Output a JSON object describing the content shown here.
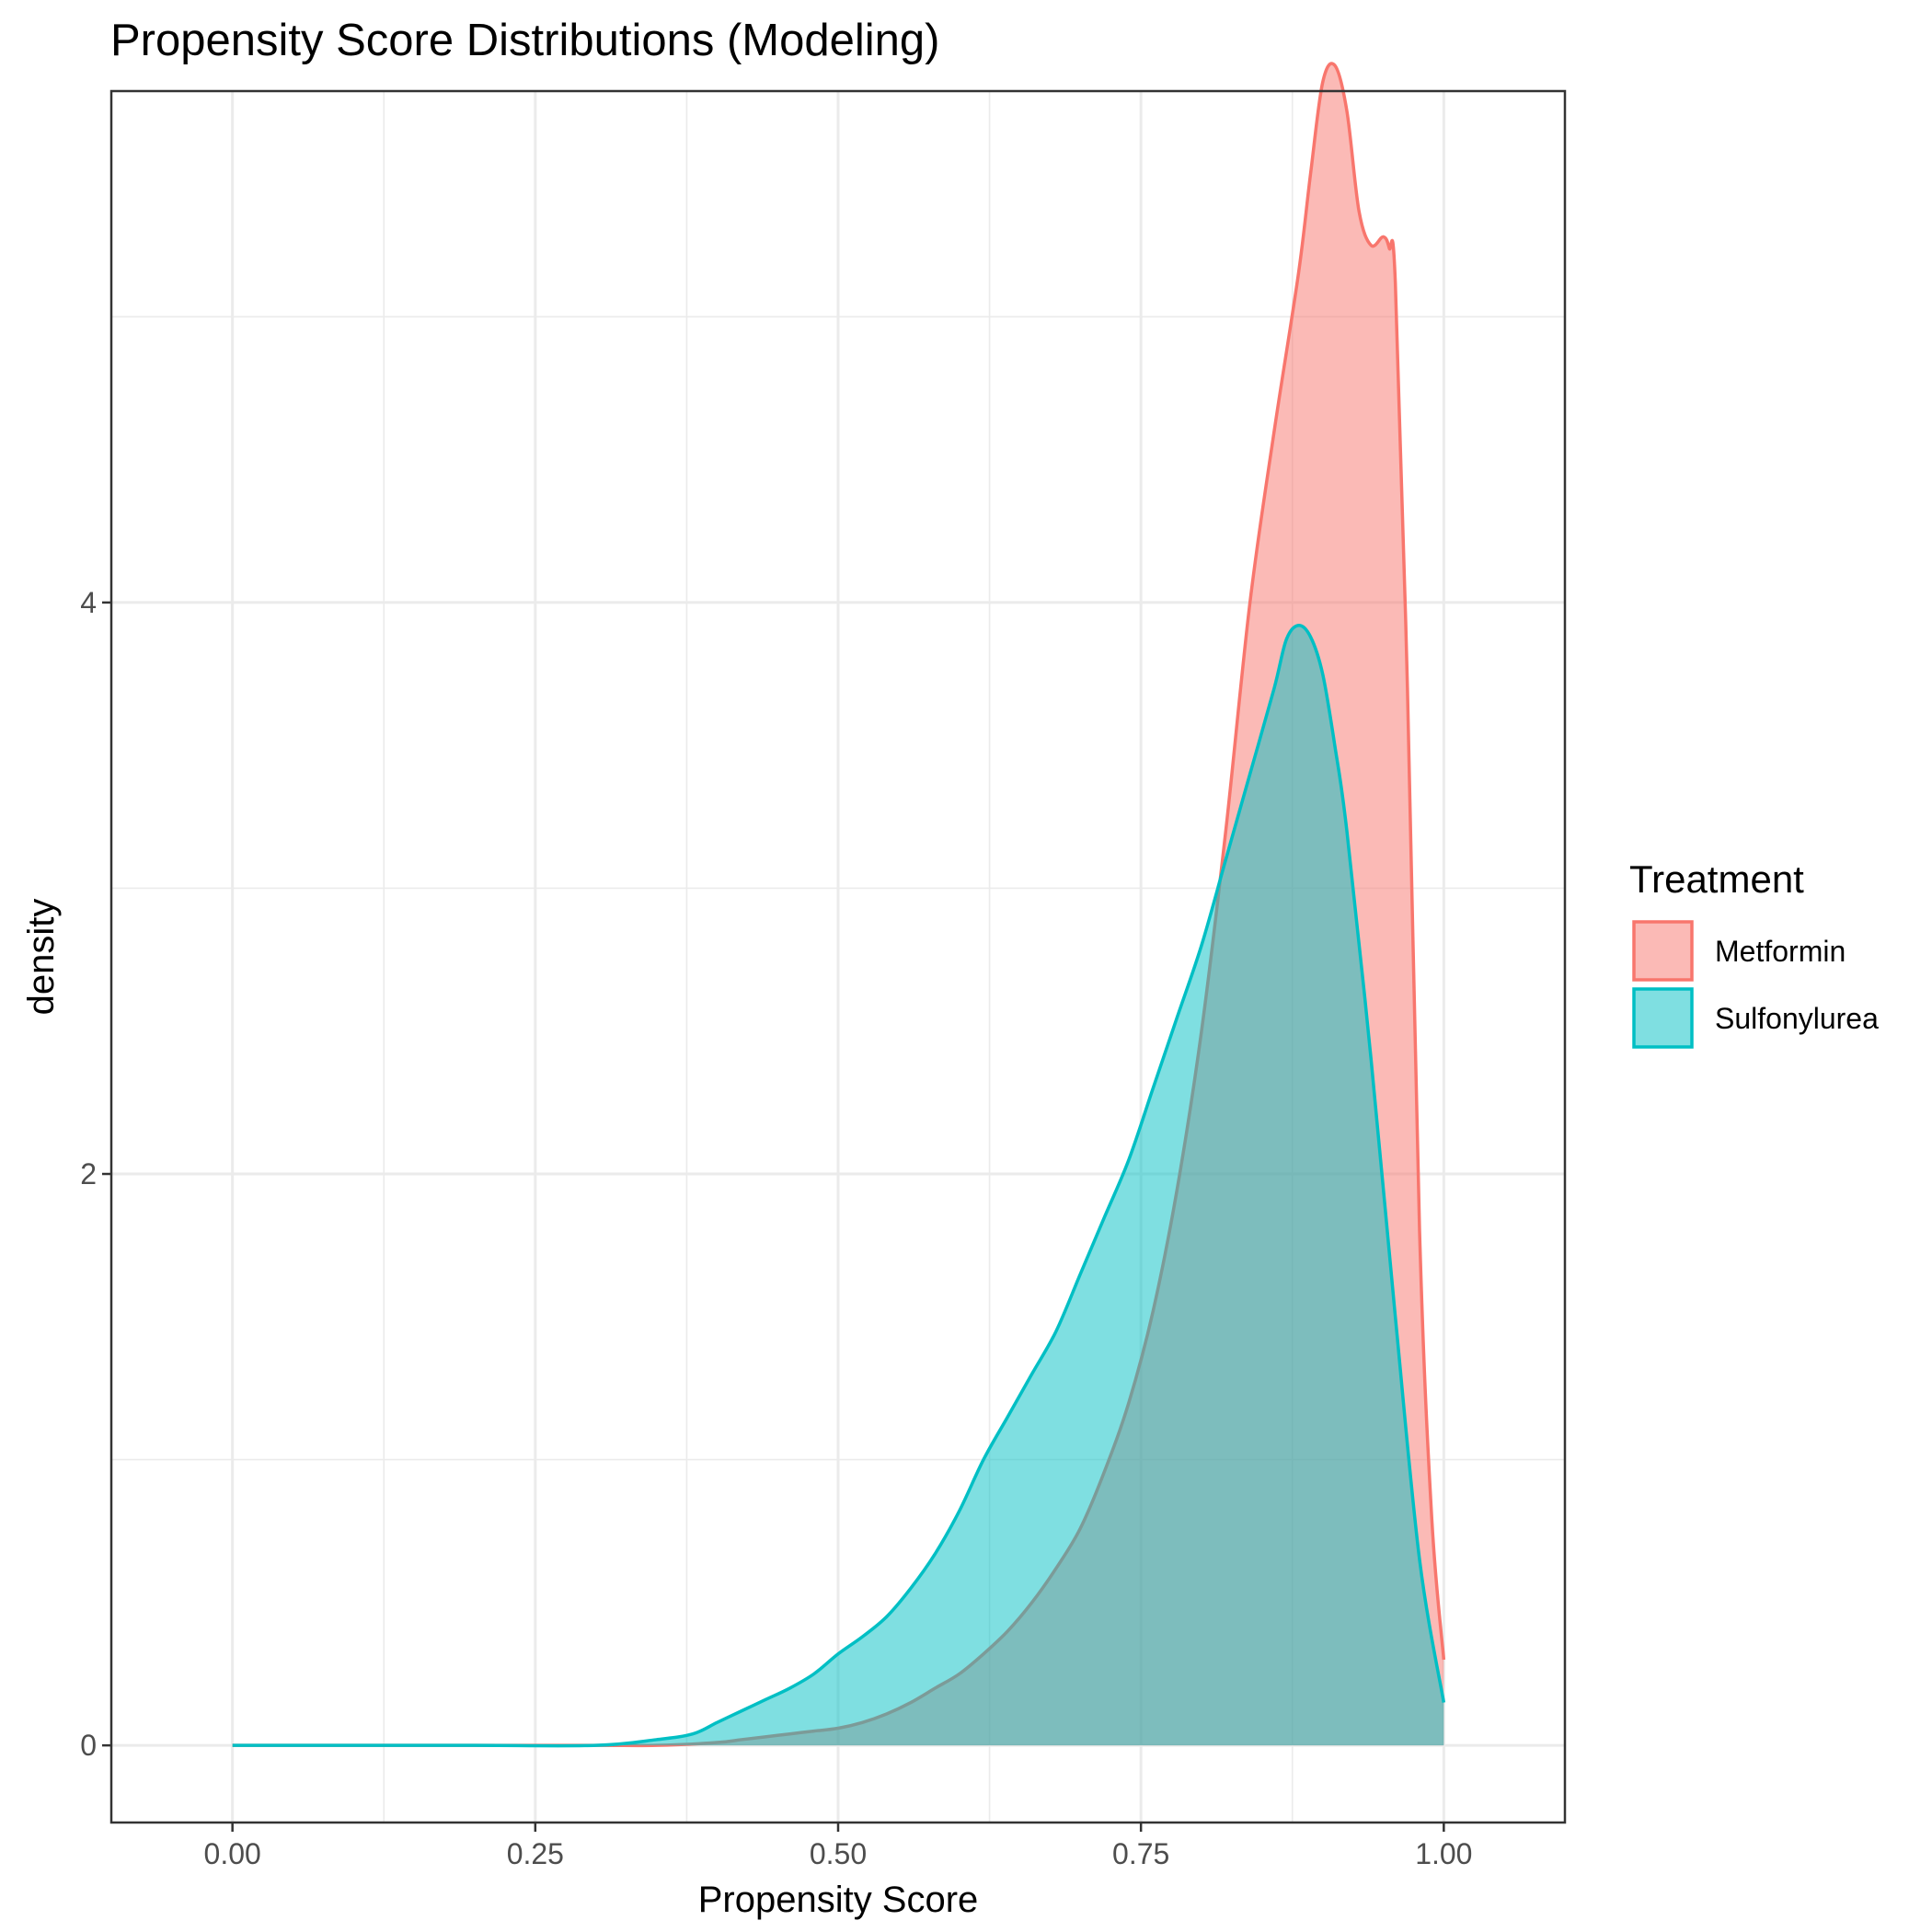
{
  "chart_data": {
    "type": "area",
    "title": "Propensity Score Distributions (Modeling)",
    "xlabel": "Propensity Score",
    "ylabel": "density",
    "xlim": [
      -0.1,
      1.1
    ],
    "ylim": [
      -0.27,
      5.79
    ],
    "x_ticks": [
      0.0,
      0.25,
      0.5,
      0.75,
      1.0
    ],
    "x_tick_labels": [
      "0.00",
      "0.25",
      "0.50",
      "0.75",
      "1.00"
    ],
    "y_ticks": [
      0,
      2,
      4
    ],
    "y_tick_labels": [
      "0",
      "2",
      "4"
    ],
    "grid": true,
    "legend": {
      "title": "Treatment",
      "position": "right"
    },
    "series": [
      {
        "name": "Metformin",
        "color": "#F8766D",
        "fill_opacity": 0.5,
        "x": [
          0.0,
          0.1,
          0.2,
          0.3,
          0.35,
          0.4,
          0.42,
          0.44,
          0.46,
          0.48,
          0.5,
          0.52,
          0.54,
          0.56,
          0.58,
          0.6,
          0.62,
          0.64,
          0.66,
          0.68,
          0.7,
          0.72,
          0.74,
          0.76,
          0.78,
          0.8,
          0.82,
          0.84,
          0.86,
          0.88,
          0.89,
          0.9,
          0.91,
          0.92,
          0.93,
          0.94,
          0.95,
          0.955,
          0.96,
          0.97,
          0.98,
          0.99,
          1.0
        ],
        "y": [
          0.0,
          0.0,
          0.0,
          0.0,
          0.0,
          0.01,
          0.02,
          0.03,
          0.04,
          0.05,
          0.06,
          0.08,
          0.11,
          0.15,
          0.2,
          0.25,
          0.32,
          0.4,
          0.5,
          0.62,
          0.76,
          0.96,
          1.2,
          1.52,
          1.95,
          2.5,
          3.2,
          4.0,
          4.6,
          5.15,
          5.5,
          5.82,
          5.88,
          5.72,
          5.37,
          5.25,
          5.28,
          5.24,
          5.12,
          3.7,
          1.8,
          0.8,
          0.3
        ]
      },
      {
        "name": "Sulfonylurea",
        "color": "#00BFC4",
        "fill_opacity": 0.5,
        "x": [
          0.0,
          0.1,
          0.2,
          0.3,
          0.35,
          0.38,
          0.4,
          0.42,
          0.44,
          0.46,
          0.48,
          0.5,
          0.52,
          0.54,
          0.56,
          0.58,
          0.6,
          0.62,
          0.64,
          0.66,
          0.68,
          0.7,
          0.72,
          0.74,
          0.76,
          0.78,
          0.8,
          0.82,
          0.84,
          0.86,
          0.87,
          0.88,
          0.89,
          0.9,
          0.91,
          0.92,
          0.94,
          0.96,
          0.98,
          1.0
        ],
        "y": [
          0.0,
          0.0,
          0.0,
          0.0,
          0.02,
          0.04,
          0.08,
          0.12,
          0.16,
          0.2,
          0.25,
          0.32,
          0.38,
          0.45,
          0.55,
          0.67,
          0.82,
          1.0,
          1.15,
          1.3,
          1.45,
          1.65,
          1.85,
          2.05,
          2.3,
          2.55,
          2.8,
          3.1,
          3.4,
          3.7,
          3.87,
          3.92,
          3.88,
          3.75,
          3.5,
          3.2,
          2.4,
          1.5,
          0.65,
          0.15
        ]
      }
    ]
  }
}
